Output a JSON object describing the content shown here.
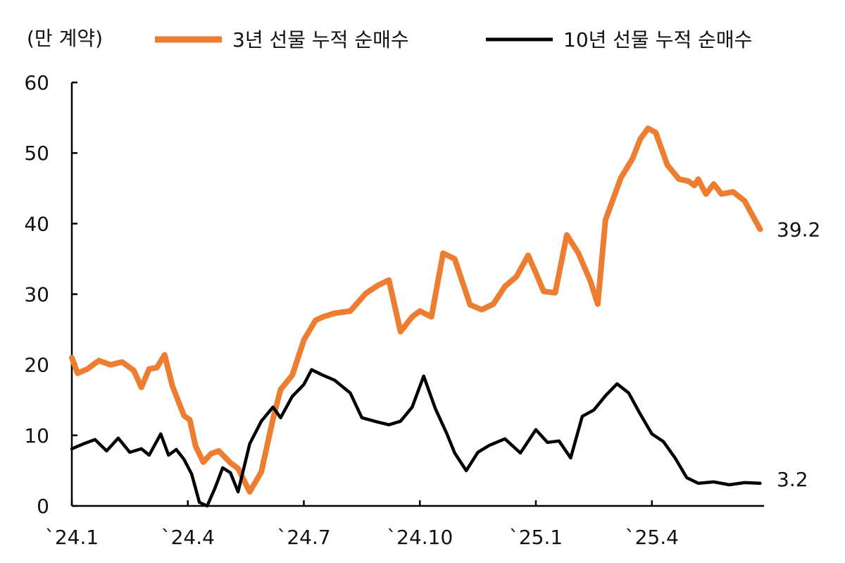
{
  "chart_data": {
    "type": "line",
    "unit_label": "(만 계약)",
    "y_ticks": [
      "0",
      "10",
      "20",
      "30",
      "40",
      "50",
      "60"
    ],
    "x_ticks": [
      "`24.1",
      "`24.4",
      "`24.7",
      "`24.10",
      "`25.1",
      "`25.4"
    ],
    "ylim": [
      0,
      60
    ],
    "xlim": [
      0,
      17.9
    ],
    "grid": false,
    "legend_position": "top",
    "series": [
      {
        "name": "3년 선물 누적 순매수",
        "color": "#ED7D31",
        "end_label": "39.2",
        "x": [
          0,
          0.15,
          0.4,
          0.7,
          1.0,
          1.3,
          1.6,
          1.8,
          2.0,
          2.2,
          2.4,
          2.6,
          2.9,
          3.05,
          3.2,
          3.4,
          3.6,
          3.8,
          4.1,
          4.3,
          4.6,
          4.9,
          5.2,
          5.4,
          5.7,
          6.0,
          6.3,
          6.5,
          6.8,
          7.2,
          7.6,
          7.9,
          8.2,
          8.5,
          8.8,
          9.0,
          9.3,
          9.6,
          9.9,
          10.3,
          10.6,
          10.9,
          11.2,
          11.5,
          11.8,
          12.0,
          12.2,
          12.5,
          12.8,
          13.1,
          13.4,
          13.6,
          13.8,
          14.2,
          14.5,
          14.7,
          14.9,
          15.1,
          15.4,
          15.7,
          15.95,
          16.1,
          16.2,
          16.3,
          16.4,
          16.6,
          16.8,
          17.1,
          17.4,
          17.8
        ],
        "y": [
          21,
          18.8,
          19.4,
          20.6,
          20,
          20.4,
          19.2,
          16.8,
          19.4,
          19.6,
          21.4,
          17,
          12.8,
          12.2,
          8.5,
          6.2,
          7.4,
          7.8,
          6.1,
          5.3,
          2,
          4.8,
          12.3,
          16.5,
          18.5,
          23.5,
          26.3,
          26.8,
          27.3,
          27.6,
          30.1,
          31.2,
          32,
          24.7,
          26.8,
          27.6,
          26.8,
          35.8,
          35,
          28.5,
          27.8,
          28.6,
          31.1,
          32.5,
          35.5,
          33,
          30.4,
          30.2,
          38.4,
          35.8,
          32,
          28.6,
          40.5,
          46.5,
          49.2,
          52,
          53.5,
          52.9,
          48.3,
          46.3,
          46,
          45.4,
          46.3,
          45.2,
          44.2,
          45.6,
          44.2,
          44.5,
          43.2,
          39.2
        ]
      },
      {
        "name": "10년 선물 누적 순매수",
        "color": "#000000",
        "end_label": "3.2",
        "x": [
          0,
          0.3,
          0.6,
          0.9,
          1.2,
          1.5,
          1.8,
          2.0,
          2.3,
          2.5,
          2.7,
          2.9,
          3.1,
          3.3,
          3.5,
          3.7,
          3.9,
          4.1,
          4.3,
          4.6,
          4.9,
          5.2,
          5.4,
          5.7,
          6.0,
          6.2,
          6.5,
          6.8,
          7.2,
          7.5,
          7.9,
          8.2,
          8.5,
          8.8,
          9.1,
          9.4,
          9.7,
          9.9,
          10.2,
          10.5,
          10.8,
          11.2,
          11.6,
          12.0,
          12.3,
          12.6,
          12.9,
          13.2,
          13.5,
          13.8,
          14.1,
          14.4,
          14.7,
          15.0,
          15.3,
          15.6,
          15.9,
          16.2,
          16.6,
          17.0,
          17.4,
          17.8
        ],
        "y": [
          8.1,
          8.8,
          9.4,
          7.8,
          9.6,
          7.6,
          8.1,
          7.2,
          10.2,
          7.2,
          8,
          6.6,
          4.5,
          0.5,
          0,
          2.5,
          5.4,
          4.7,
          2,
          8.8,
          12,
          14,
          12.5,
          15.5,
          17.2,
          19.3,
          18.5,
          17.8,
          16,
          12.5,
          11.9,
          11.5,
          12,
          14,
          18.4,
          13.8,
          10.2,
          7.5,
          5,
          7.6,
          8.6,
          9.5,
          7.5,
          10.8,
          9,
          9.2,
          6.8,
          12.7,
          13.6,
          15.6,
          17.3,
          16,
          13,
          10.2,
          9.1,
          6.8,
          4,
          3.2,
          3.4,
          3.0,
          3.3,
          3.2
        ]
      }
    ]
  }
}
